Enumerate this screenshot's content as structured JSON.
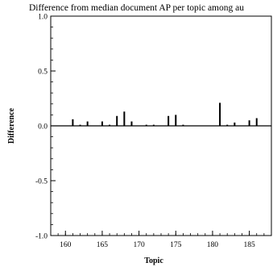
{
  "chart_data": {
    "type": "bar",
    "title": "Difference from median document AP per topic among au",
    "xlabel": "Topic",
    "ylabel": "Difference",
    "xlim": [
      158,
      188
    ],
    "ylim": [
      -1.0,
      1.0
    ],
    "x_ticks": [
      160,
      165,
      170,
      175,
      180,
      185
    ],
    "y_ticks": [
      "-1.0",
      "-0.5",
      "0.0",
      "0.5",
      "1.0"
    ],
    "y_tick_values": [
      -1.0,
      -0.5,
      0.0,
      0.5,
      1.0
    ],
    "grid": false,
    "zero_line": true,
    "x": [
      159,
      160,
      161,
      162,
      163,
      164,
      165,
      166,
      167,
      168,
      169,
      170,
      171,
      172,
      173,
      174,
      175,
      176,
      177,
      178,
      179,
      180,
      181,
      182,
      183,
      184,
      185,
      186,
      187
    ],
    "values": [
      0.0,
      0.0,
      0.06,
      0.01,
      0.04,
      0.0,
      0.04,
      0.01,
      0.09,
      0.13,
      0.04,
      0.0,
      0.01,
      0.01,
      0.0,
      0.09,
      0.1,
      0.01,
      0.0,
      0.0,
      0.0,
      0.0,
      0.21,
      0.01,
      0.03,
      0.0,
      0.05,
      0.07,
      0.0
    ]
  }
}
